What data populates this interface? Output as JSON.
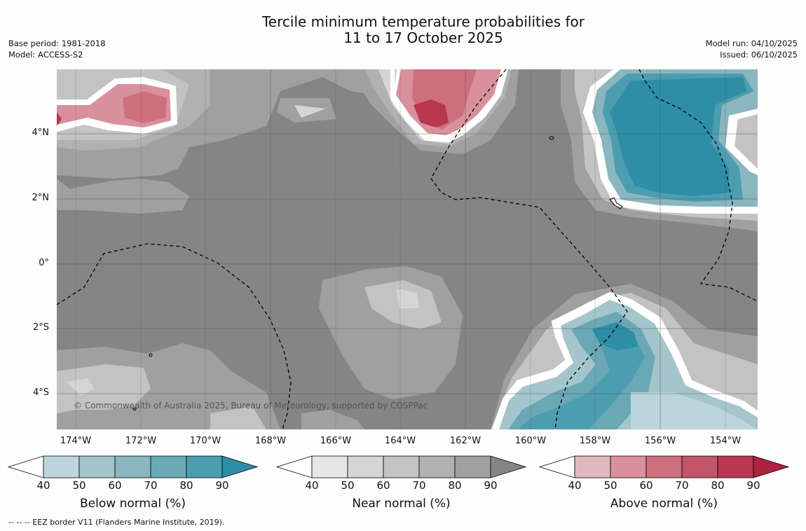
{
  "title": {
    "line1": "Tercile minimum temperature probabilities for",
    "line2": "11 to 17 October 2025"
  },
  "meta_left": {
    "base_period": "Base period: 1981-2018",
    "model": "Model: ACCESS-S2"
  },
  "meta_right": {
    "model_run": "Model run: 04/10/2025",
    "issued": "Issued: 06/10/2025"
  },
  "lat_labels": [
    "4°N",
    "2°N",
    "0°",
    "2°S",
    "4°S"
  ],
  "lon_labels": [
    "174°W",
    "172°W",
    "170°W",
    "168°W",
    "166°W",
    "164°W",
    "162°W",
    "160°W",
    "158°W",
    "156°W",
    "154°W"
  ],
  "copyright": "© Commonwealth of Australia 2025, Bureau of Meteorology, supported by COSPPac",
  "colorbars": [
    {
      "label": "Below normal (%)",
      "ticks": [
        "40",
        "50",
        "60",
        "70",
        "80",
        "90"
      ],
      "colors": [
        "#ffffff",
        "#bcd5dc",
        "#a3c5cb",
        "#89b6bf",
        "#6aa8b6",
        "#4c9daf",
        "#2d8ea6"
      ]
    },
    {
      "label": "Near normal (%)",
      "ticks": [
        "40",
        "50",
        "60",
        "70",
        "80",
        "90"
      ],
      "colors": [
        "#ffffff",
        "#e6e6e6",
        "#d5d5d5",
        "#c3c3c3",
        "#b1b1b1",
        "#a0a0a0",
        "#858585"
      ]
    },
    {
      "label": "Above normal (%)",
      "ticks": [
        "40",
        "50",
        "60",
        "70",
        "80",
        "90"
      ],
      "colors": [
        "#ffffff",
        "#e2b7bd",
        "#d8919a",
        "#cd6f7c",
        "#c25567",
        "#b93650",
        "#b0203f"
      ]
    }
  ],
  "footnote": "--  --  -- EEZ border V11 (Flanders Marine Institute, 2019)."
}
